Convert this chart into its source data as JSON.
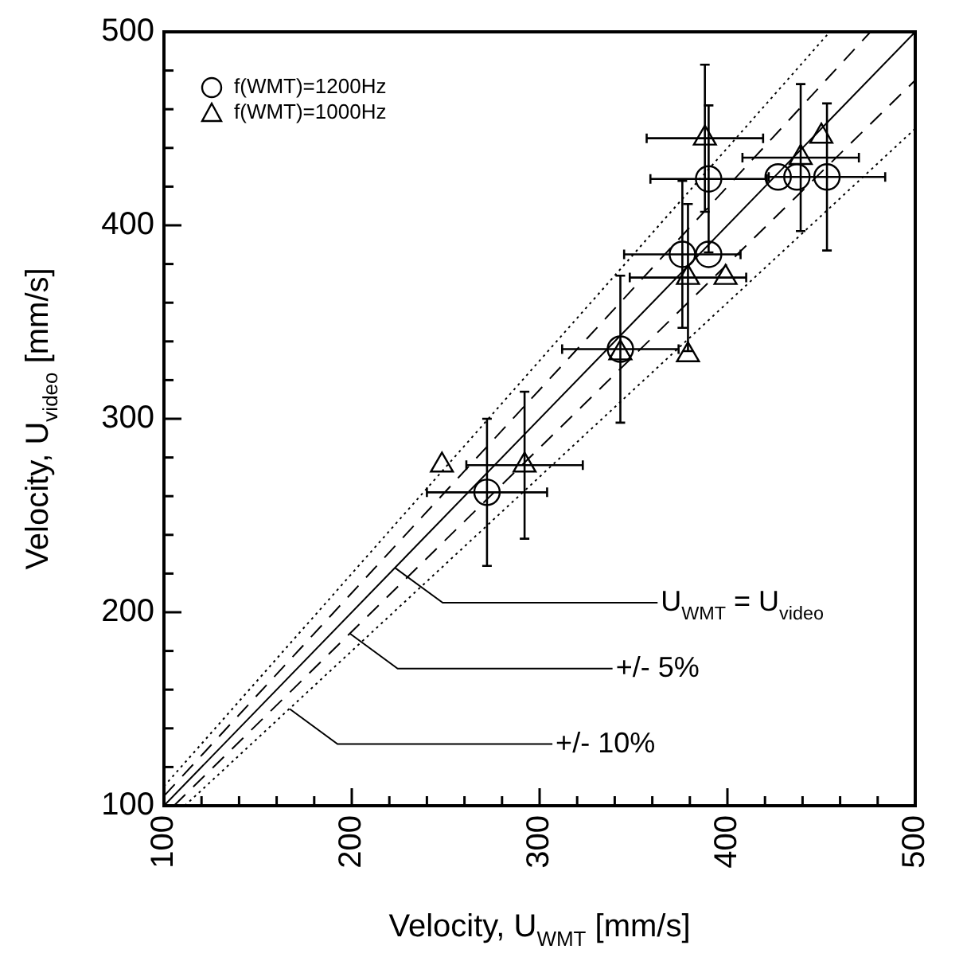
{
  "chart_data": {
    "type": "scatter",
    "xlabel": "Velocity, U$_{WMT}$ [mm/s]",
    "ylabel": "Velocity, U$_{video}$ [mm/s]",
    "xlim": [
      100,
      500
    ],
    "ylim": [
      100,
      500
    ],
    "xticks": [
      100,
      {
        "value": 120,
        "label": null
      },
      {
        "value": 140,
        "label": null
      },
      {
        "value": 160,
        "label": null
      },
      {
        "value": 180,
        "label": null
      },
      200,
      {
        "value": 220,
        "label": null
      },
      {
        "value": 240,
        "label": null
      },
      {
        "value": 260,
        "label": null
      },
      {
        "value": 280,
        "label": null
      },
      300,
      {
        "value": 320,
        "label": null
      },
      {
        "value": 340,
        "label": null
      },
      {
        "value": 360,
        "label": null
      },
      {
        "value": 380,
        "label": null
      },
      400,
      {
        "value": 420,
        "label": null
      },
      {
        "value": 440,
        "label": null
      },
      {
        "value": 460,
        "label": null
      },
      {
        "value": 480,
        "label": null
      },
      500
    ],
    "yticks": [
      100,
      {
        "value": 120,
        "label": null
      },
      {
        "value": 140,
        "label": null
      },
      {
        "value": 160,
        "label": null
      },
      {
        "value": 180,
        "label": null
      },
      200,
      {
        "value": 220,
        "label": null
      },
      {
        "value": 240,
        "label": null
      },
      {
        "value": 260,
        "label": null
      },
      {
        "value": 280,
        "label": null
      },
      300,
      {
        "value": 320,
        "label": null
      },
      {
        "value": 340,
        "label": null
      },
      {
        "value": 360,
        "label": null
      },
      {
        "value": 380,
        "label": null
      },
      400,
      {
        "value": 420,
        "label": null
      },
      {
        "value": 440,
        "label": null
      },
      {
        "value": 460,
        "label": null
      },
      {
        "value": 480,
        "label": null
      },
      500
    ],
    "grid": false,
    "legend": "top left",
    "series": [
      {
        "name": "f(WMT)=1200Hz",
        "color": "#000000",
        "marker": "circle",
        "x": [
          272,
          343,
          376,
          390,
          390,
          427,
          437,
          453
        ],
        "values": [
          262,
          336,
          385,
          385,
          424,
          425,
          425,
          425
        ],
        "errors": [
          38,
          38,
          38,
          null,
          38,
          null,
          null,
          38
        ],
        "xerrors": [
          32,
          31,
          31,
          null,
          31,
          null,
          null,
          31
        ]
      },
      {
        "name": "f(WMT)=1000Hz",
        "color": "#000000",
        "marker": "triangle",
        "x": [
          248,
          292,
          343,
          379,
          379,
          399,
          388,
          439,
          450
        ],
        "values": [
          276,
          276,
          334,
          333,
          373,
          373,
          445,
          435,
          446
        ],
        "errors": [
          null,
          38,
          null,
          null,
          38,
          null,
          38,
          38,
          null
        ],
        "xerrors": [
          null,
          31,
          null,
          null,
          31,
          null,
          31,
          31,
          null
        ]
      },
      {
        "type": "line",
        "color": "#000000",
        "line_style": "solid",
        "x": [
          100,
          500
        ],
        "values": [
          100,
          500
        ]
      },
      {
        "type": "line",
        "color": "#000000",
        "line_style": "dashed",
        "x": [
          100,
          476.2
        ],
        "values": [
          105,
          500
        ]
      },
      {
        "type": "line",
        "color": "#000000",
        "line_style": "dashed",
        "x": [
          105.3,
          500
        ],
        "values": [
          100,
          475
        ]
      },
      {
        "type": "line",
        "color": "#000000",
        "line_style": "dotted",
        "x": [
          100,
          454.5
        ],
        "values": [
          110,
          500
        ]
      },
      {
        "type": "line",
        "color": "#000000",
        "line_style": "dotted",
        "x": [
          111.1,
          500
        ],
        "values": [
          100,
          450
        ]
      }
    ],
    "annotations": [
      {
        "text": "U$_{WMT}$ = U$_{video}$",
        "x": 223,
        "y": 223
      },
      {
        "text": "+/- 5%",
        "x": 199,
        "y": 189
      },
      {
        "text": "+/- 10%",
        "x": 167,
        "y": 150
      }
    ]
  }
}
